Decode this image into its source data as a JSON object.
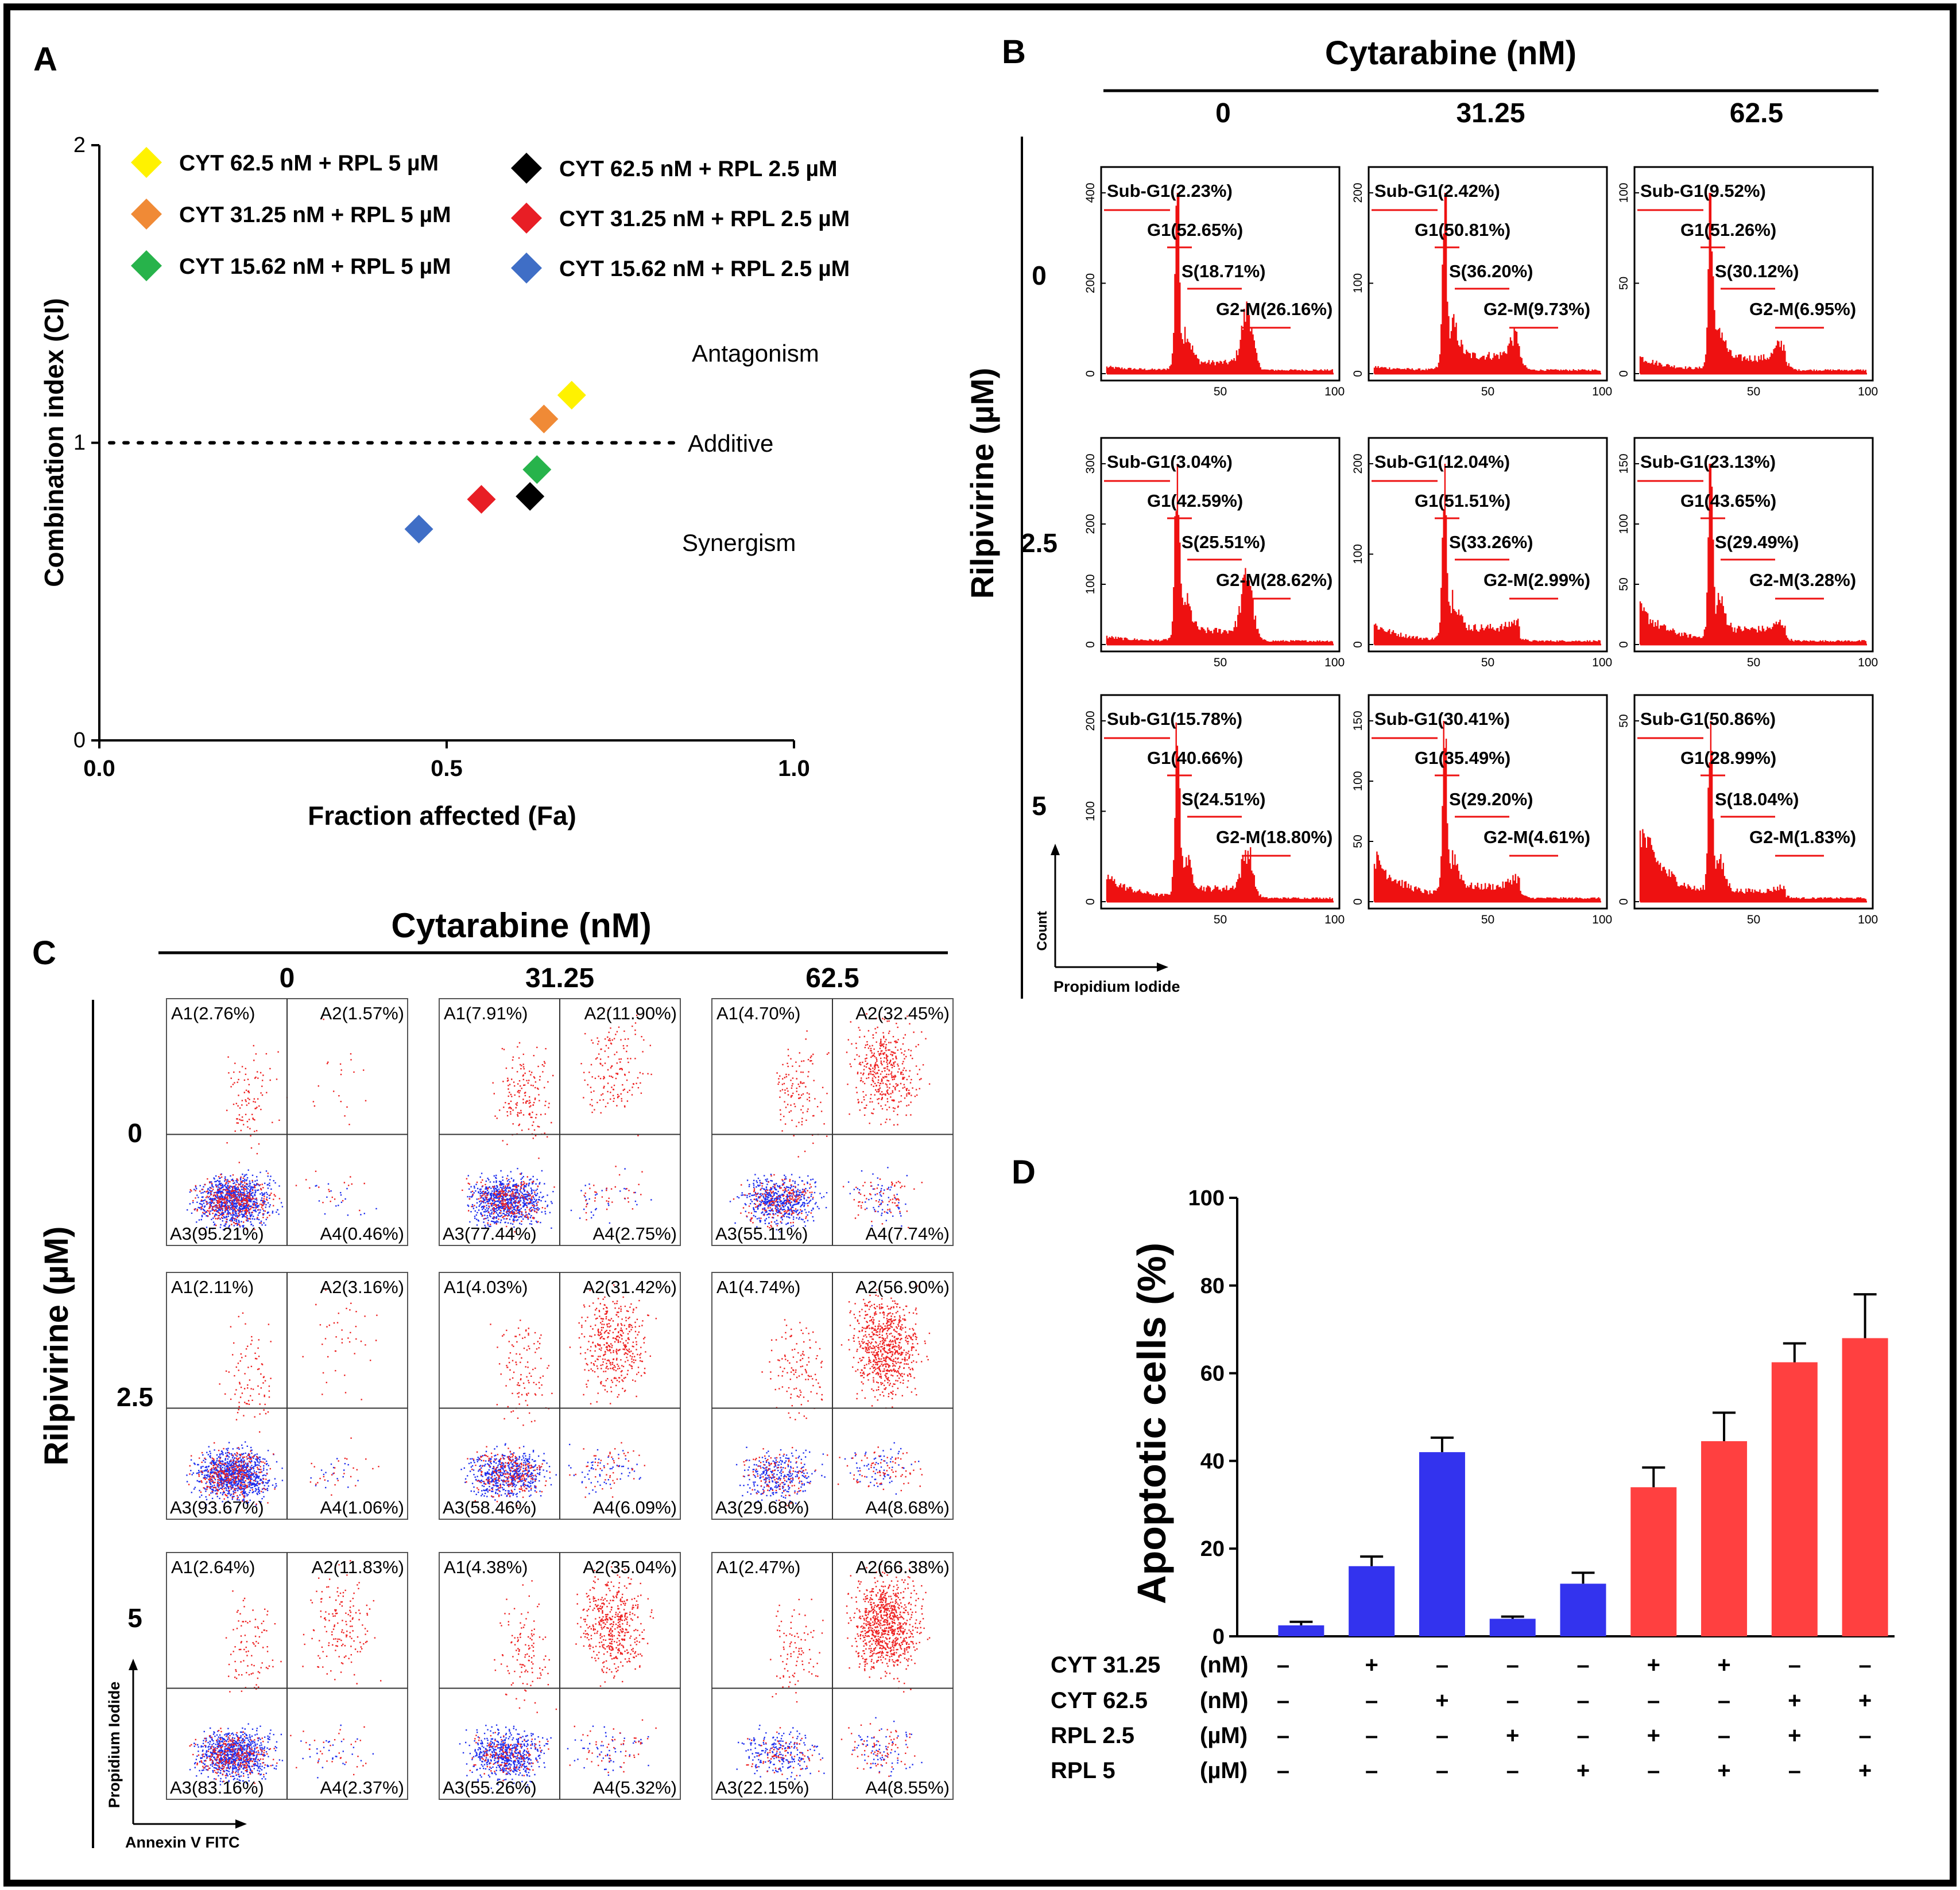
{
  "panel_labels": [
    "A",
    "B",
    "C",
    "D"
  ],
  "chart_data": [
    {
      "panel": "A",
      "type": "scatter",
      "xlabel": "Fraction affected (Fa)",
      "ylabel": "Combination index (CI)",
      "xlim": [
        0,
        1
      ],
      "ylim": [
        0,
        2
      ],
      "xticks": [
        "0.0",
        "0.5",
        "1.0"
      ],
      "yticks": [
        "0",
        "1",
        "2"
      ],
      "reference_line": 1,
      "annotations": {
        "antagonism": "Antagonism",
        "additive": "Additive",
        "synergism": "Synergism"
      },
      "legend": "top-left",
      "points": [
        {
          "label": "CYT 62.5 nM + RPL 5 µM",
          "fa": 0.68,
          "ci": 1.16,
          "color": "#FFF200"
        },
        {
          "label": "CYT 31.25 nM + RPL 5 µM",
          "fa": 0.64,
          "ci": 1.08,
          "color": "#F08A36"
        },
        {
          "label": "CYT 15.62 nM + RPL 5 µM",
          "fa": 0.63,
          "ci": 0.91,
          "color": "#27B34B"
        },
        {
          "label": "CYT 62.5 nM + RPL 2.5 µM",
          "fa": 0.62,
          "ci": 0.82,
          "color": "#000000"
        },
        {
          "label": "CYT 31.25 nM + RPL 2.5 µM",
          "fa": 0.55,
          "ci": 0.81,
          "color": "#E81E25"
        },
        {
          "label": "CYT 15.62 nM + RPL 2.5 µM",
          "fa": 0.46,
          "ci": 0.71,
          "color": "#3F6EC6"
        }
      ]
    },
    {
      "panel": "B",
      "type": "histogram-grid",
      "col_header": "Cytarabine (nM)",
      "col_labels": [
        "0",
        "31.25",
        "62.5"
      ],
      "row_header": "Rilpivirine (µM)",
      "row_labels": [
        "0",
        "2.5",
        "5"
      ],
      "xlabel": "Propidium Iodide",
      "ylabel": "Count",
      "xticks": [
        "50",
        "100"
      ],
      "cells": [
        {
          "yticks": [
            "0",
            "200",
            "400"
          ],
          "subg1": "Sub-G1(2.23%)",
          "g1": "G1(52.65%)",
          "s": "S(18.71%)",
          "g2m": "G2-M(26.16%)"
        },
        {
          "yticks": [
            "0",
            "100",
            "200"
          ],
          "subg1": "Sub-G1(2.42%)",
          "g1": "G1(50.81%)",
          "s": "S(36.20%)",
          "g2m": "G2-M(9.73%)"
        },
        {
          "yticks": [
            "0",
            "50",
            "100"
          ],
          "subg1": "Sub-G1(9.52%)",
          "g1": "G1(51.26%)",
          "s": "S(30.12%)",
          "g2m": "G2-M(6.95%)"
        },
        {
          "yticks": [
            "0",
            "100",
            "200",
            "300"
          ],
          "subg1": "Sub-G1(3.04%)",
          "g1": "G1(42.59%)",
          "s": "S(25.51%)",
          "g2m": "G2-M(28.62%)"
        },
        {
          "yticks": [
            "0",
            "100",
            "200"
          ],
          "subg1": "Sub-G1(12.04%)",
          "g1": "G1(51.51%)",
          "s": "S(33.26%)",
          "g2m": "G2-M(2.99%)"
        },
        {
          "yticks": [
            "0",
            "50",
            "100",
            "150"
          ],
          "subg1": "Sub-G1(23.13%)",
          "g1": "G1(43.65%)",
          "s": "S(29.49%)",
          "g2m": "G2-M(3.28%)"
        },
        {
          "yticks": [
            "0",
            "100",
            "200"
          ],
          "subg1": "Sub-G1(15.78%)",
          "g1": "G1(40.66%)",
          "s": "S(24.51%)",
          "g2m": "G2-M(18.80%)"
        },
        {
          "yticks": [
            "0",
            "50",
            "100",
            "150"
          ],
          "subg1": "Sub-G1(30.41%)",
          "g1": "G1(35.49%)",
          "s": "S(29.20%)",
          "g2m": "G2-M(4.61%)"
        },
        {
          "yticks": [
            "0",
            "50"
          ],
          "subg1": "Sub-G1(50.86%)",
          "g1": "G1(28.99%)",
          "s": "S(18.04%)",
          "g2m": "G2-M(1.83%)"
        }
      ]
    },
    {
      "panel": "C",
      "type": "scatter-grid",
      "col_header": "Cytarabine (nM)",
      "col_labels": [
        "0",
        "31.25",
        "62.5"
      ],
      "row_header": "Rilpivirine (µM)",
      "row_labels": [
        "0",
        "2.5",
        "5"
      ],
      "xlabel": "Annexin V FITC",
      "ylabel": "Propidium Iodide",
      "cells": [
        {
          "a1": "A1(2.76%)",
          "a2": "A2(1.57%)",
          "a3": "A3(95.21%)",
          "a4": "A4(0.46%)"
        },
        {
          "a1": "A1(7.91%)",
          "a2": "A2(11.90%)",
          "a3": "A3(77.44%)",
          "a4": "A4(2.75%)"
        },
        {
          "a1": "A1(4.70%)",
          "a2": "A2(32.45%)",
          "a3": "A3(55.11%)",
          "a4": "A4(7.74%)"
        },
        {
          "a1": "A1(2.11%)",
          "a2": "A2(3.16%)",
          "a3": "A3(93.67%)",
          "a4": "A4(1.06%)"
        },
        {
          "a1": "A1(4.03%)",
          "a2": "A2(31.42%)",
          "a3": "A3(58.46%)",
          "a4": "A4(6.09%)"
        },
        {
          "a1": "A1(4.74%)",
          "a2": "A2(56.90%)",
          "a3": "A3(29.68%)",
          "a4": "A4(8.68%)"
        },
        {
          "a1": "A1(2.64%)",
          "a2": "A2(11.83%)",
          "a3": "A3(83.16%)",
          "a4": "A4(2.37%)"
        },
        {
          "a1": "A1(4.38%)",
          "a2": "A2(35.04%)",
          "a3": "A3(55.26%)",
          "a4": "A4(5.32%)"
        },
        {
          "a1": "A1(2.47%)",
          "a2": "A2(66.38%)",
          "a3": "A3(22.15%)",
          "a4": "A4(8.55%)"
        }
      ]
    },
    {
      "panel": "D",
      "type": "bar",
      "ylabel": "Apoptotic cells (%)",
      "ylim": [
        0,
        100
      ],
      "yticks": [
        "0",
        "20",
        "40",
        "60",
        "80",
        "100"
      ],
      "values": [
        2.5,
        16,
        42,
        4,
        12,
        34,
        44.5,
        62.5,
        68
      ],
      "errors": [
        0.8,
        2.2,
        3.3,
        0.5,
        2.5,
        4.5,
        6.5,
        4.3,
        10
      ],
      "colors": [
        "#3333EE",
        "#3333EE",
        "#3333EE",
        "#3333EE",
        "#3333EE",
        "#FF4040",
        "#FF4040",
        "#FF4040",
        "#FF4040"
      ],
      "condition_rows": [
        {
          "label": "CYT 31.25",
          "unit": "(nM)",
          "marks": [
            "–",
            "+",
            "–",
            "–",
            "–",
            "+",
            "+",
            "–",
            "–"
          ]
        },
        {
          "label": "CYT 62.5",
          "unit": "(nM)",
          "marks": [
            "–",
            "–",
            "+",
            "–",
            "–",
            "–",
            "–",
            "+",
            "+"
          ]
        },
        {
          "label": "RPL 2.5",
          "unit": "(µM)",
          "marks": [
            "–",
            "–",
            "–",
            "+",
            "–",
            "+",
            "–",
            "+",
            "–"
          ]
        },
        {
          "label": "RPL 5",
          "unit": "(µM)",
          "marks": [
            "–",
            "–",
            "–",
            "–",
            "+",
            "–",
            "+",
            "–",
            "+"
          ]
        }
      ]
    }
  ]
}
